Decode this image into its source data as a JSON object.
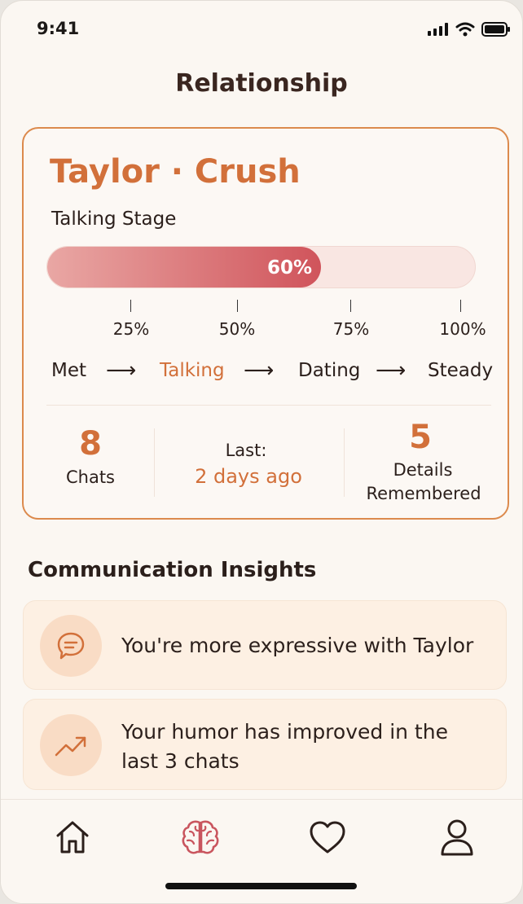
{
  "status": {
    "time": "9:41"
  },
  "header": {
    "title": "Relationship"
  },
  "card": {
    "name": "Taylor · Crush",
    "stage_label": "Talking Stage",
    "progress": 0.6,
    "progress_text": "60%",
    "ticks": [
      "25%",
      "50%",
      "75%",
      "100%"
    ],
    "stages": [
      "Met",
      "Talking",
      "Dating",
      "Steady"
    ],
    "active_stage": "Talking",
    "stats": {
      "chats_count": "8",
      "chats_label": "Chats",
      "last_label": "Last:",
      "last_value": "2 days ago",
      "details_count": "5",
      "details_label_1": "Details",
      "details_label_2": "Remembered"
    }
  },
  "insights": {
    "title": "Communication Insights",
    "items": [
      {
        "icon": "chat-bubble-icon",
        "line1": "You're more expressive with Taylor",
        "line2": ""
      },
      {
        "icon": "trend-up-icon",
        "line1": "Your humor has improved in the",
        "line2": "last 3 chats"
      }
    ]
  },
  "tabbar": {
    "items": [
      {
        "icon": "home-icon",
        "active": false
      },
      {
        "icon": "brain-icon",
        "active": true
      },
      {
        "icon": "heart-icon",
        "active": false
      },
      {
        "icon": "profile-icon",
        "active": false
      }
    ]
  },
  "colors": {
    "accent": "#d2703a",
    "progress": "#d0545b",
    "brain": "#c9555e"
  }
}
